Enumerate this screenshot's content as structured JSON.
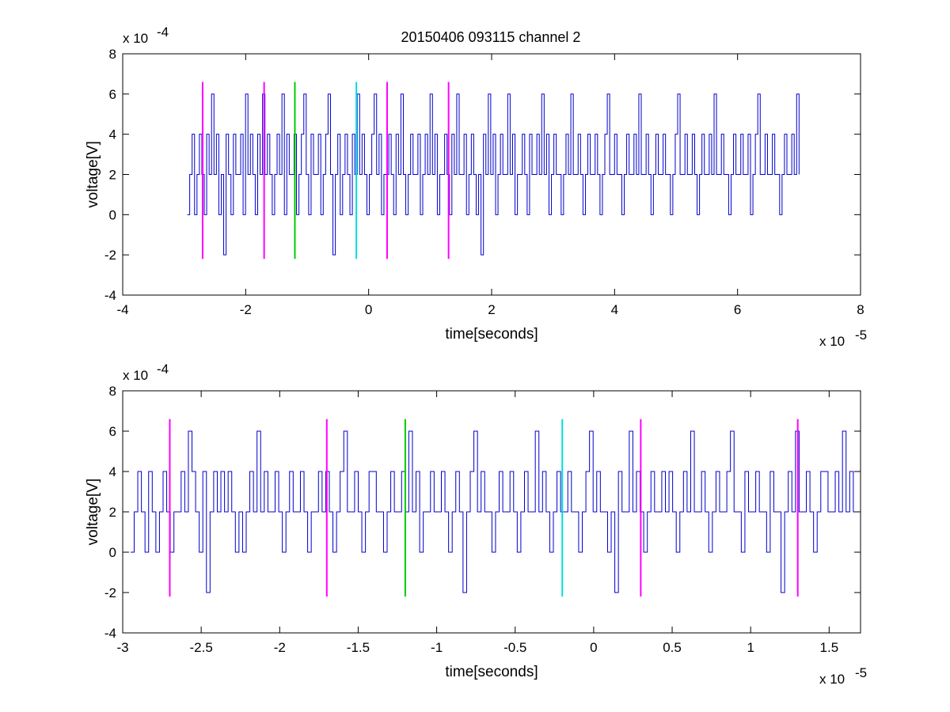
{
  "chart_data": [
    {
      "type": "line",
      "title": "20150406 093115 channel 2",
      "xlabel": "time[seconds]",
      "ylabel": "voltage[V]",
      "x_multiplier_label": "x 10",
      "x_multiplier_exp": "-5",
      "y_multiplier_label": "x 10",
      "y_multiplier_exp": "-4",
      "xlim": [
        -4,
        8
      ],
      "ylim": [
        -4,
        8
      ],
      "x_ticks": [
        -4,
        -2,
        0,
        2,
        4,
        6,
        8
      ],
      "x_tick_labels": [
        "-4",
        "-2",
        "0",
        "2",
        "4",
        "6",
        "8"
      ],
      "y_ticks": [
        -4,
        -2,
        0,
        2,
        4,
        6,
        8
      ],
      "y_tick_labels": [
        "-4",
        "-2",
        "0",
        "2",
        "4",
        "6",
        "8"
      ],
      "grid": false,
      "signal": {
        "color": "#0000cc",
        "x_start": -2.95,
        "x_end": 7.0,
        "quantization_step": 2,
        "values": [
          0,
          2,
          4,
          0,
          2,
          4,
          2,
          0,
          4,
          2,
          6,
          2,
          4,
          0,
          2,
          -2,
          4,
          2,
          0,
          4,
          2,
          2,
          4,
          0,
          6,
          2,
          4,
          2,
          0,
          4,
          2,
          6,
          2,
          4,
          2,
          0,
          2,
          4,
          2,
          6,
          0,
          4,
          2,
          2,
          4,
          0,
          2,
          4,
          6,
          2,
          0,
          4,
          2,
          2,
          4,
          0,
          2,
          4,
          6,
          2,
          -2,
          2,
          4,
          0,
          2,
          4,
          2,
          0,
          4,
          2,
          6,
          2,
          4,
          2,
          0,
          2,
          4,
          6,
          2,
          4,
          0,
          2,
          2,
          4,
          2,
          0,
          4,
          2,
          6,
          2,
          0,
          2,
          4,
          2,
          2,
          4,
          0,
          2,
          4,
          2,
          6,
          2,
          4,
          0,
          2,
          2,
          4,
          2,
          0,
          4,
          2,
          6,
          2,
          2,
          4,
          0,
          2,
          4,
          2,
          0,
          2,
          -2,
          4,
          2,
          6,
          2,
          4,
          0,
          2,
          4,
          2,
          2,
          6,
          2,
          4,
          0,
          2,
          2,
          4,
          2,
          0,
          4,
          2,
          2,
          4,
          2,
          6,
          2,
          4,
          0,
          2,
          4,
          2,
          2,
          0,
          2,
          4,
          2,
          6,
          2,
          2,
          4,
          2,
          0,
          2,
          4,
          2,
          2,
          4,
          2,
          0,
          2,
          4,
          6,
          2,
          2,
          4,
          2,
          2,
          0,
          2,
          4,
          2,
          2,
          4,
          2,
          6,
          2,
          2,
          4,
          2,
          0,
          2,
          4,
          2,
          2,
          4,
          2,
          2,
          0,
          2,
          4,
          6,
          2,
          2,
          4,
          2,
          2,
          4,
          2,
          0,
          2,
          4,
          2,
          2,
          4,
          2,
          6,
          2,
          2,
          4,
          2,
          2,
          0,
          2,
          4,
          2,
          2,
          4,
          2,
          2,
          4,
          0,
          2,
          4,
          6,
          2,
          2,
          4,
          2,
          2,
          4,
          2,
          2,
          0,
          2,
          4,
          2,
          2,
          4,
          2,
          6,
          2
        ]
      },
      "markers": [
        {
          "x": -2.7,
          "color": "#ff00ff"
        },
        {
          "x": -1.7,
          "color": "#ff00ff"
        },
        {
          "x": -1.2,
          "color": "#00cc00"
        },
        {
          "x": -0.2,
          "color": "#00dddd"
        },
        {
          "x": 0.3,
          "color": "#ff00ff"
        },
        {
          "x": 1.3,
          "color": "#ff00ff"
        }
      ],
      "marker_range": [
        -2.2,
        6.6
      ]
    },
    {
      "type": "line",
      "title": "",
      "xlabel": "time[seconds]",
      "ylabel": "voltage[V]",
      "x_multiplier_label": "x 10",
      "x_multiplier_exp": "-5",
      "y_multiplier_label": "x 10",
      "y_multiplier_exp": "-4",
      "xlim": [
        -3.0,
        1.7
      ],
      "ylim": [
        -4,
        8
      ],
      "x_ticks": [
        -3,
        -2.5,
        -2,
        -1.5,
        -1,
        -0.5,
        0,
        0.5,
        1,
        1.5
      ],
      "x_tick_labels": [
        "-3",
        "-2.5",
        "-2",
        "-1.5",
        "-1",
        "-0.5",
        "0",
        "0.5",
        "1",
        "1.5"
      ],
      "y_ticks": [
        -4,
        -2,
        0,
        2,
        4,
        6,
        8
      ],
      "y_tick_labels": [
        "-4",
        "-2",
        "0",
        "2",
        "4",
        "6",
        "8"
      ],
      "grid": false,
      "signal": {
        "color": "#0000cc",
        "x_start": -2.95,
        "x_end": 1.7,
        "quantization_step": 2,
        "values": [
          0,
          2,
          4,
          2,
          0,
          4,
          2,
          0,
          2,
          4,
          2,
          0,
          2,
          2,
          4,
          2,
          6,
          4,
          2,
          0,
          4,
          -2,
          2,
          4,
          2,
          4,
          2,
          4,
          2,
          0,
          2,
          0,
          2,
          4,
          2,
          6,
          2,
          4,
          2,
          2,
          4,
          2,
          0,
          2,
          4,
          2,
          2,
          4,
          2,
          0,
          2,
          2,
          4,
          2,
          4,
          2,
          0,
          2,
          4,
          6,
          2,
          2,
          4,
          2,
          0,
          2,
          4,
          4,
          2,
          2,
          0,
          2,
          4,
          2,
          2,
          4,
          2,
          6,
          2,
          4,
          0,
          2,
          2,
          4,
          2,
          2,
          4,
          2,
          0,
          2,
          4,
          2,
          -2,
          2,
          4,
          6,
          2,
          4,
          2,
          2,
          0,
          2,
          4,
          2,
          2,
          4,
          2,
          0,
          2,
          4,
          2,
          2,
          6,
          2,
          4,
          2,
          0,
          2,
          4,
          2,
          2,
          4,
          2,
          2,
          0,
          2,
          4,
          6,
          2,
          4,
          2,
          2,
          0,
          2,
          -2,
          4,
          2,
          2,
          6,
          2,
          4,
          2,
          0,
          2,
          4,
          2,
          2,
          4,
          2,
          4,
          2,
          0,
          2,
          4,
          2,
          6,
          2,
          2,
          4,
          2,
          0,
          2,
          4,
          2,
          2,
          4,
          6,
          2,
          2,
          0,
          4,
          2,
          2,
          4,
          2,
          2,
          0,
          4,
          2,
          2,
          -2,
          2,
          4,
          2,
          6,
          2,
          2,
          4,
          2,
          0,
          2,
          4,
          4,
          2,
          2,
          4,
          2,
          6,
          2,
          4,
          2,
          2,
          4
        ]
      },
      "markers": [
        {
          "x": -2.7,
          "color": "#ff00ff"
        },
        {
          "x": -1.7,
          "color": "#ff00ff"
        },
        {
          "x": -1.2,
          "color": "#00cc00"
        },
        {
          "x": -0.2,
          "color": "#00dddd"
        },
        {
          "x": 0.3,
          "color": "#ff00ff"
        },
        {
          "x": 1.3,
          "color": "#ff00ff"
        }
      ],
      "marker_range": [
        -2.2,
        6.6
      ]
    }
  ]
}
